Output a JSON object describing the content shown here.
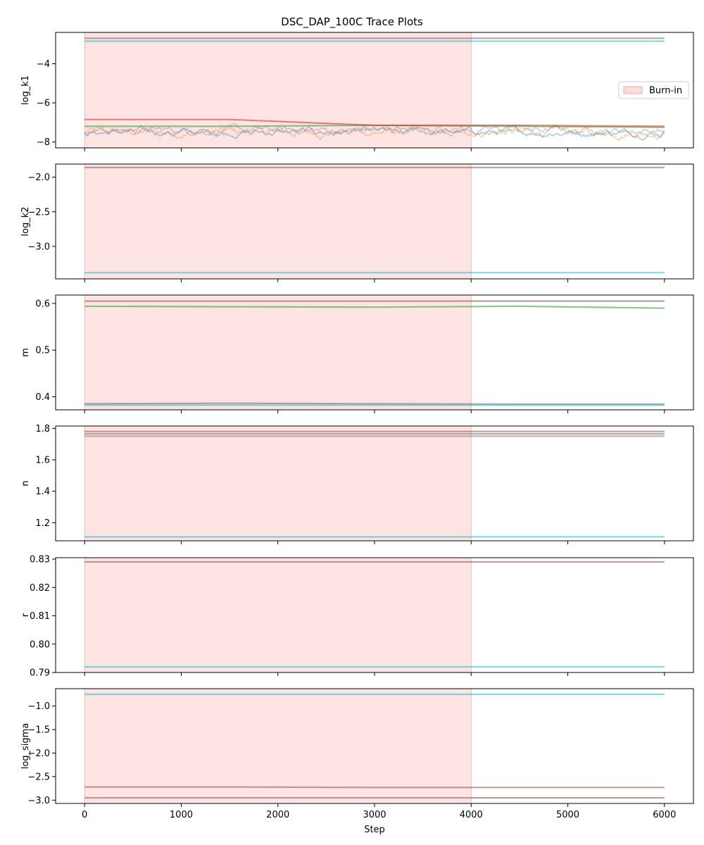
{
  "chart_data": {
    "type": "line",
    "title": "DSC_DAP_100C Trace Plots",
    "xlabel": "Step",
    "xlim": [
      -300,
      6300
    ],
    "xticks": [
      0,
      1000,
      2000,
      3000,
      4000,
      5000,
      6000
    ],
    "x_range": [
      0,
      6000
    ],
    "burn_in": {
      "label": "Burn-in",
      "start": 0,
      "end": 4000,
      "color": "#ffc7c7"
    },
    "legend": {
      "panel": 0,
      "placement": "right"
    },
    "panels": [
      {
        "ylabel": "log_k1",
        "ylim": [
          -8.3,
          -2.4
        ],
        "yticks": [
          -8,
          -6,
          -4
        ],
        "ytick_labels": [
          "−8",
          "−6",
          "−4"
        ],
        "series": [
          {
            "color": "#8c564b",
            "values": [
              -2.7,
              -2.7,
              -2.7,
              -2.7,
              -2.7
            ]
          },
          {
            "color": "#17becf",
            "values": [
              -2.85,
              -2.85,
              -2.85,
              -2.85,
              -2.85
            ]
          },
          {
            "color": "#ff7f0e",
            "noisy": true,
            "base": -7.5,
            "amp": 0.35
          },
          {
            "color": "#1f77b4",
            "noisy": true,
            "base": -7.5,
            "amp": 0.3
          },
          {
            "color": "#2ca02c",
            "values": [
              -7.2,
              -7.2,
              -7.15,
              -7.2,
              -7.25
            ]
          },
          {
            "color": "#7f7f7f",
            "noisy": true,
            "base": -7.4,
            "amp": 0.3
          },
          {
            "color": "#d62728",
            "values": [
              -6.85,
              -6.85,
              -7.15,
              -7.15,
              -7.2
            ]
          }
        ]
      },
      {
        "ylabel": "log_k2",
        "ylim": [
          -3.47,
          -1.81
        ],
        "yticks": [
          -3.0,
          -2.5,
          -2.0
        ],
        "ytick_labels": [
          "−3.0",
          "−2.5",
          "−2.0"
        ],
        "series": [
          {
            "color": "#8c564b",
            "values": [
              -1.86,
              -1.86,
              -1.86,
              -1.86,
              -1.86
            ]
          },
          {
            "color": "#17becf",
            "values": [
              -3.38,
              -3.38,
              -3.38,
              -3.38,
              -3.38
            ]
          }
        ]
      },
      {
        "ylabel": "m",
        "ylim": [
          0.372,
          0.618
        ],
        "yticks": [
          0.4,
          0.5,
          0.6
        ],
        "ytick_labels": [
          "0.4",
          "0.5",
          "0.6"
        ],
        "series": [
          {
            "color": "#8c564b",
            "values": [
              0.605,
              0.605,
              0.605,
              0.605,
              0.605
            ]
          },
          {
            "color": "#2ca02c",
            "values": [
              0.594,
              0.593,
              0.592,
              0.594,
              0.59
            ]
          },
          {
            "color": "#8c564b",
            "values": [
              0.385,
              0.386,
              0.385,
              0.384,
              0.384
            ]
          },
          {
            "color": "#17becf",
            "values": [
              0.382,
              0.382,
              0.382,
              0.382,
              0.382
            ]
          }
        ]
      },
      {
        "ylabel": "n",
        "ylim": [
          1.085,
          1.815
        ],
        "yticks": [
          1.2,
          1.4,
          1.6,
          1.8
        ],
        "ytick_labels": [
          "1.2",
          "1.4",
          "1.6",
          "1.8"
        ],
        "series": [
          {
            "color": "#8c564b",
            "values": [
              1.78,
              1.78,
              1.78,
              1.78,
              1.78
            ]
          },
          {
            "color": "#8c564b",
            "values": [
              1.765,
              1.765,
              1.765,
              1.765,
              1.765
            ]
          },
          {
            "color": "#7f7f7f",
            "values": [
              1.75,
              1.75,
              1.75,
              1.75,
              1.75
            ]
          },
          {
            "color": "#17becf",
            "values": [
              1.11,
              1.11,
              1.11,
              1.11,
              1.11
            ]
          }
        ]
      },
      {
        "ylabel": "r",
        "ylim": [
          0.79,
          0.8305
        ],
        "yticks": [
          0.79,
          0.8,
          0.81,
          0.82,
          0.83
        ],
        "ytick_labels": [
          "0.79",
          "0.80",
          "0.81",
          "0.82",
          "0.83"
        ],
        "series": [
          {
            "color": "#8c564b",
            "values": [
              0.829,
              0.829,
              0.829,
              0.829,
              0.829
            ]
          },
          {
            "color": "#17becf",
            "values": [
              0.792,
              0.792,
              0.792,
              0.792,
              0.792
            ]
          }
        ]
      },
      {
        "ylabel": "log_sigma",
        "ylim": [
          -3.07,
          -0.63
        ],
        "yticks": [
          -3.0,
          -2.5,
          -2.0,
          -1.5,
          -1.0
        ],
        "ytick_labels": [
          "−3.0",
          "−2.5",
          "−2.0",
          "−1.5",
          "−1.0"
        ],
        "series": [
          {
            "color": "#17becf",
            "values": [
              -0.75,
              -0.75,
              -0.75,
              -0.75,
              -0.75
            ]
          },
          {
            "color": "#8c564b",
            "values": [
              -2.72,
              -2.72,
              -2.73,
              -2.73,
              -2.73
            ]
          },
          {
            "color": "#8c564b",
            "values": [
              -2.95,
              -2.95,
              -2.95,
              -2.95,
              -2.95
            ]
          }
        ]
      }
    ]
  }
}
